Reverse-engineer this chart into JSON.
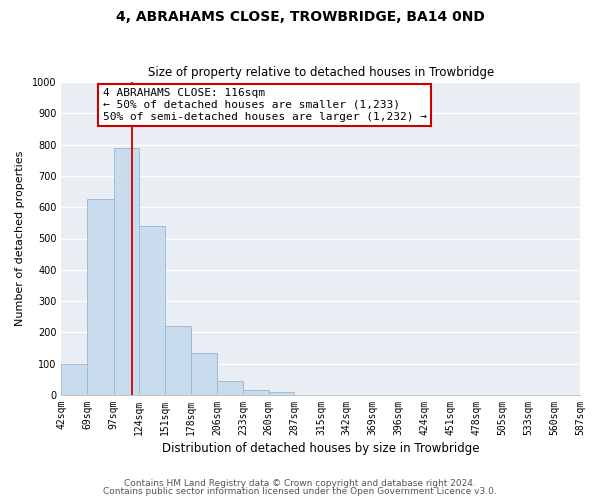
{
  "title": "4, ABRAHAMS CLOSE, TROWBRIDGE, BA14 0ND",
  "subtitle": "Size of property relative to detached houses in Trowbridge",
  "xlabel": "Distribution of detached houses by size in Trowbridge",
  "ylabel": "Number of detached properties",
  "footer_line1": "Contains HM Land Registry data © Crown copyright and database right 2024.",
  "footer_line2": "Contains public sector information licensed under the Open Government Licence v3.0.",
  "bin_labels": [
    "42sqm",
    "69sqm",
    "97sqm",
    "124sqm",
    "151sqm",
    "178sqm",
    "206sqm",
    "233sqm",
    "260sqm",
    "287sqm",
    "315sqm",
    "342sqm",
    "369sqm",
    "396sqm",
    "424sqm",
    "451sqm",
    "478sqm",
    "505sqm",
    "533sqm",
    "560sqm",
    "587sqm"
  ],
  "bin_edges": [
    42,
    69,
    97,
    124,
    151,
    178,
    206,
    233,
    260,
    287,
    315,
    342,
    369,
    396,
    424,
    451,
    478,
    505,
    533,
    560,
    587
  ],
  "bar_heights": [
    100,
    625,
    790,
    540,
    220,
    135,
    45,
    15,
    10,
    0,
    0,
    0,
    0,
    0,
    0,
    0,
    0,
    0,
    0,
    0
  ],
  "bar_color": "#c8dcee",
  "bar_edgecolor": "#a0bcd4",
  "vline_x": 116,
  "vline_color": "#cc0000",
  "ylim": [
    0,
    1000
  ],
  "yticks": [
    0,
    100,
    200,
    300,
    400,
    500,
    600,
    700,
    800,
    900,
    1000
  ],
  "annotation_title": "4 ABRAHAMS CLOSE: 116sqm",
  "annotation_line1": "← 50% of detached houses are smaller (1,233)",
  "annotation_line2": "50% of semi-detached houses are larger (1,232) →",
  "annotation_box_facecolor": "#ffffff",
  "annotation_box_edgecolor": "#cc0000",
  "bg_color": "#ffffff",
  "plot_bg_color": "#e8eef4",
  "grid_color": "#ffffff",
  "title_fontsize": 10,
  "subtitle_fontsize": 8.5,
  "ylabel_fontsize": 8,
  "xlabel_fontsize": 8.5,
  "tick_fontsize": 7,
  "footer_fontsize": 6.5,
  "annotation_fontsize": 8
}
